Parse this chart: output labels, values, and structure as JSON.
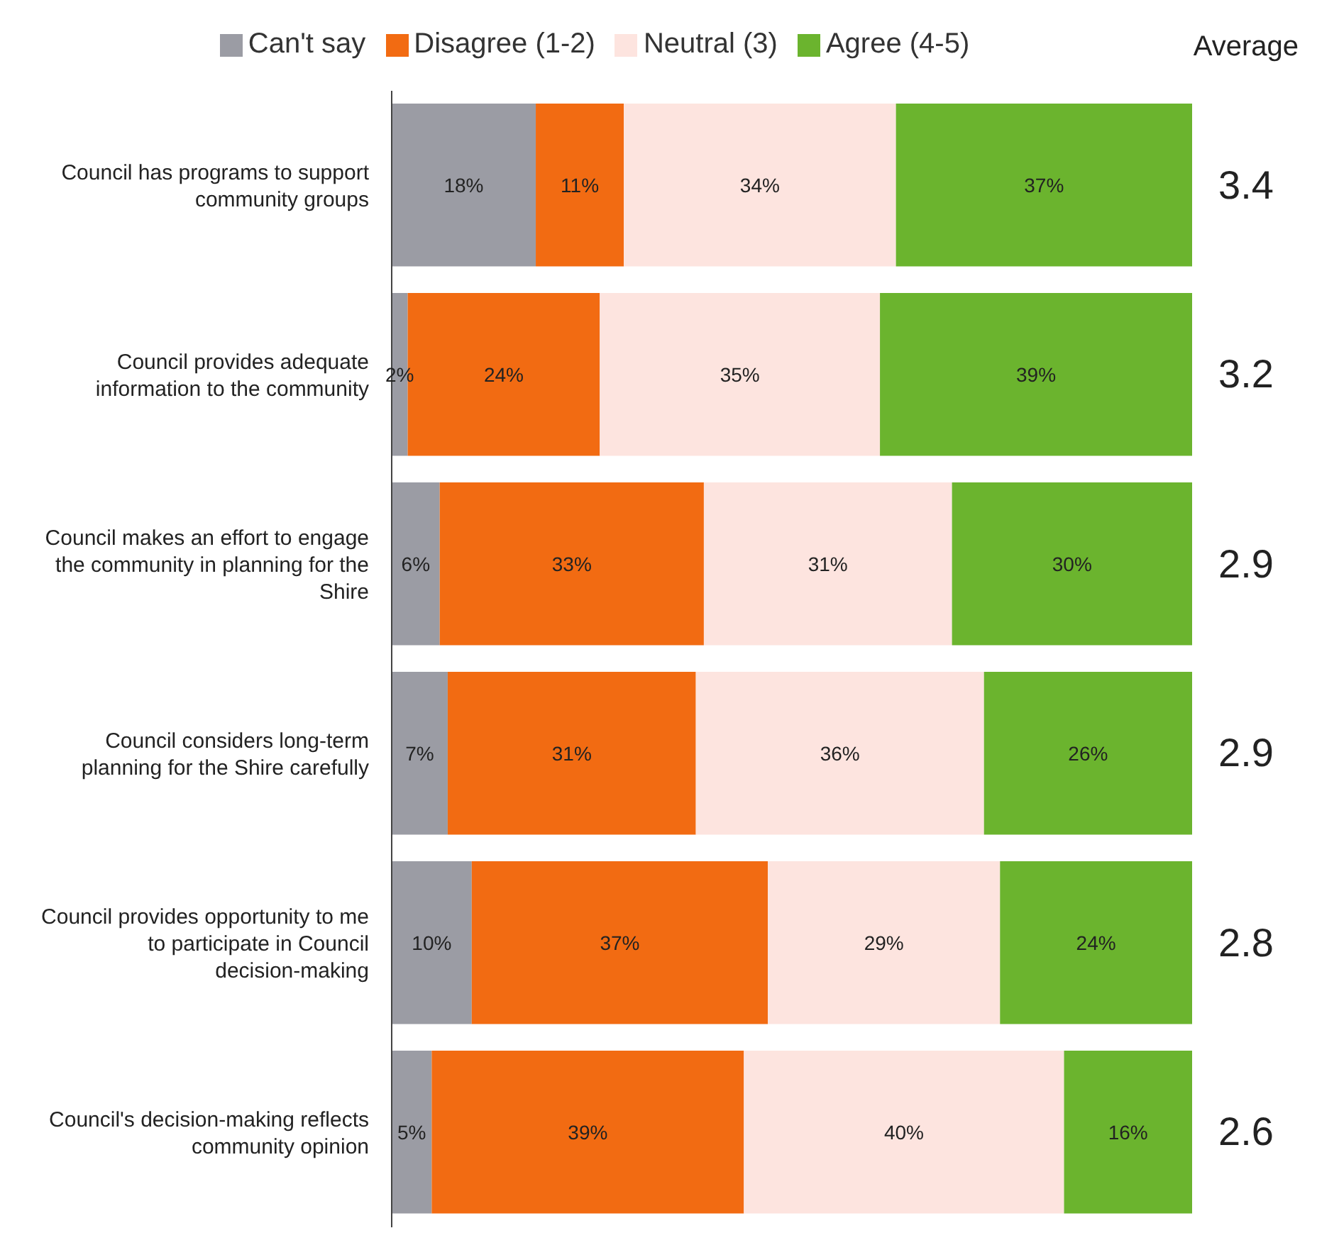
{
  "chart_data": {
    "type": "bar",
    "orientation": "horizontal",
    "stacked": true,
    "legend": "top",
    "categories": [
      "Council has programs to support community groups",
      "Council provides adequate information to the community",
      "Council makes an effort to engage the community in planning for the Shire",
      "Council considers long-term planning for the Shire carefully",
      "Council provides opportunity to me to participate in Council decision-making",
      "Council's decision-making reflects community opinion"
    ],
    "series": [
      {
        "name": "Can't say",
        "color": "#9b9ca4",
        "values": [
          18,
          2,
          6,
          7,
          10,
          5
        ],
        "value_labels": [
          "18%",
          "2%",
          "6%",
          "7%",
          "10%",
          "5%"
        ]
      },
      {
        "name": "Disagree (1-2)",
        "color": "#f26b12",
        "values": [
          11,
          24,
          33,
          31,
          37,
          39
        ],
        "value_labels": [
          "11%",
          "24%",
          "33%",
          "31%",
          "37%",
          "39%"
        ]
      },
      {
        "name": "Neutral (3)",
        "color": "#fde4df",
        "values": [
          34,
          35,
          31,
          36,
          29,
          40
        ],
        "value_labels": [
          "34%",
          "35%",
          "31%",
          "36%",
          "29%",
          "40%"
        ]
      },
      {
        "name": "Agree (4-5)",
        "color": "#6bb42e",
        "values": [
          37,
          39,
          30,
          26,
          24,
          16
        ],
        "value_labels": [
          "37%",
          "39%",
          "30%",
          "26%",
          "24%",
          "16%"
        ]
      }
    ],
    "annotations": [
      "Average",
      "3.4",
      "3.2",
      "2.9",
      "2.9",
      "2.8",
      "2.6"
    ]
  }
}
